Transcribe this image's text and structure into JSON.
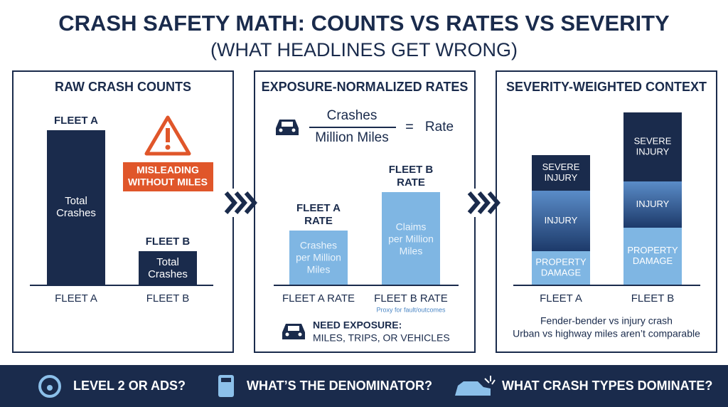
{
  "header": {
    "title": "CRASH SAFETY MATH: COUNTS VS RATES VS SEVERITY",
    "subtitle": "(WHAT HEADLINES GET WRONG)"
  },
  "panels": [
    {
      "title": "RAW CRASH COUNTS",
      "bars": [
        {
          "label": [
            "FLEET A"
          ],
          "text": [
            "Total",
            "Crashes"
          ],
          "category": "FLEET A"
        },
        {
          "label": [
            "FLEET B"
          ],
          "text": [
            "Total",
            "Crashes"
          ],
          "category": "FLEET B"
        }
      ],
      "warning": [
        "MISLEADING",
        "WITHOUT MILES"
      ]
    },
    {
      "title": "EXPOSURE-NORMALIZED RATES",
      "formula": {
        "numerator": "Crashes",
        "denominator": "Million Miles",
        "equals": "=",
        "result": "Rate"
      },
      "bars": [
        {
          "label": [
            "FLEET A",
            "RATE"
          ],
          "text": [
            "Crashes",
            "per Million",
            "Miles"
          ],
          "category": "FLEET A RATE"
        },
        {
          "label": [
            "FLEET B",
            "RATE"
          ],
          "text": [
            "Claims",
            "per Million",
            "Miles"
          ],
          "category": "FLEET B RATE",
          "note": "Proxy for fault/outcomes"
        }
      ],
      "exposure": {
        "title": "NEED EXPOSURE:",
        "text": "MILES, TRIPS, OR VEHICLES"
      }
    },
    {
      "title": "SEVERITY-WEIGHTED CONTEXT",
      "stacks": [
        {
          "category": "FLEET A",
          "segments": [
            [
              "SEVERE",
              "INJURY"
            ],
            [
              "INJURY"
            ],
            [
              "PROPERTY",
              "DAMAGE"
            ]
          ]
        },
        {
          "category": "FLEET B",
          "segments": [
            [
              "SEVERE",
              "INJURY"
            ],
            [
              "INJURY"
            ],
            [
              "PROPERTY",
              "DAMAGE"
            ]
          ]
        }
      ],
      "notes": [
        "Fender-bender vs injury crash",
        "Urban vs highway miles aren’t comparable"
      ]
    }
  ],
  "footer": [
    "LEVEL 2 OR ADS?",
    "WHAT’S THE DENOMINATOR?",
    "WHAT CRASH TYPES DOMINATE?"
  ]
}
